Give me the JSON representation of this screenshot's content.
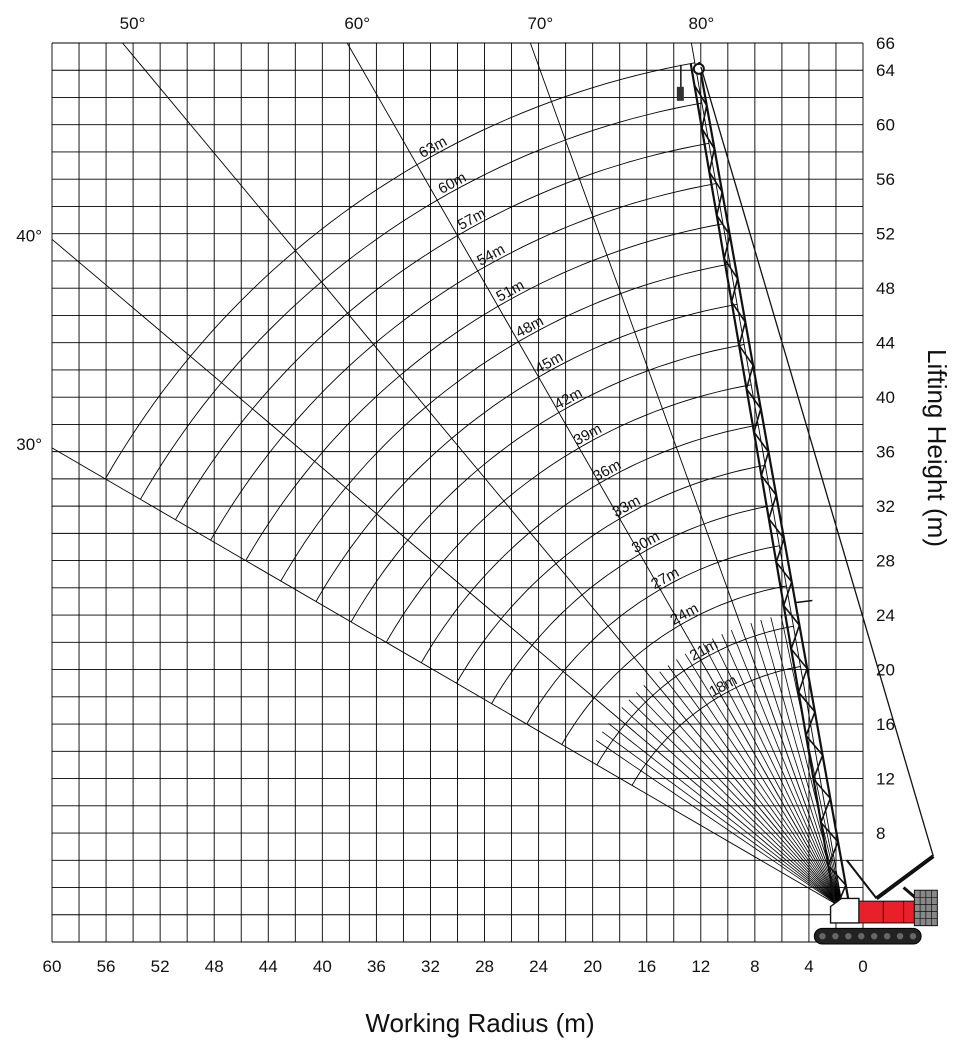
{
  "chart_data": {
    "type": "line",
    "title": "",
    "xlabel": "Working Radius (m)",
    "ylabel": "Lifting Height (m)",
    "xlim": [
      60,
      0
    ],
    "ylim": [
      0,
      66
    ],
    "grid": true,
    "x_ticks": [
      60,
      56,
      52,
      48,
      44,
      40,
      36,
      32,
      28,
      24,
      20,
      16,
      12,
      8,
      4,
      0
    ],
    "x_tick_labels": [
      "60",
      "56",
      "52",
      "48",
      "44",
      "40",
      "36",
      "32",
      "28",
      "24",
      "20",
      "16",
      "12",
      "8",
      "4",
      "0"
    ],
    "y_ticks": [
      8,
      12,
      16,
      20,
      24,
      28,
      32,
      36,
      40,
      44,
      48,
      52,
      56,
      60,
      64,
      66
    ],
    "y_tick_labels": [
      "8",
      "12",
      "16",
      "20",
      "24",
      "28",
      "32",
      "36",
      "40",
      "44",
      "48",
      "52",
      "56",
      "60",
      "64",
      "66"
    ],
    "boom_pivot": {
      "radius": 1.5,
      "height": 2.5
    },
    "boom_lengths": [
      {
        "label": "18m",
        "length": 18
      },
      {
        "label": "21m",
        "length": 21
      },
      {
        "label": "24m",
        "length": 24
      },
      {
        "label": "27m",
        "length": 27
      },
      {
        "label": "30m",
        "length": 30
      },
      {
        "label": "33m",
        "length": 33
      },
      {
        "label": "36m",
        "length": 36
      },
      {
        "label": "39m",
        "length": 39
      },
      {
        "label": "42m",
        "length": 42
      },
      {
        "label": "45m",
        "length": 45
      },
      {
        "label": "48m",
        "length": 48
      },
      {
        "label": "51m",
        "length": 51
      },
      {
        "label": "54m",
        "length": 54
      },
      {
        "label": "57m",
        "length": 57
      },
      {
        "label": "60m",
        "length": 60
      },
      {
        "label": "63m",
        "length": 63
      }
    ],
    "boom_angles": [
      {
        "label": "30°",
        "angle": 30
      },
      {
        "label": "40°",
        "angle": 40
      },
      {
        "label": "50°",
        "angle": 50
      },
      {
        "label": "60°",
        "angle": 60
      },
      {
        "label": "70°",
        "angle": 70
      },
      {
        "label": "80°",
        "angle": 80
      }
    ],
    "boom_angle_range": [
      30,
      80
    ],
    "crane_boom": {
      "length": 63,
      "angle": 80
    },
    "colors": {
      "grid": "#000000",
      "counterweight": "#e8202a",
      "lines": "#000000"
    }
  }
}
